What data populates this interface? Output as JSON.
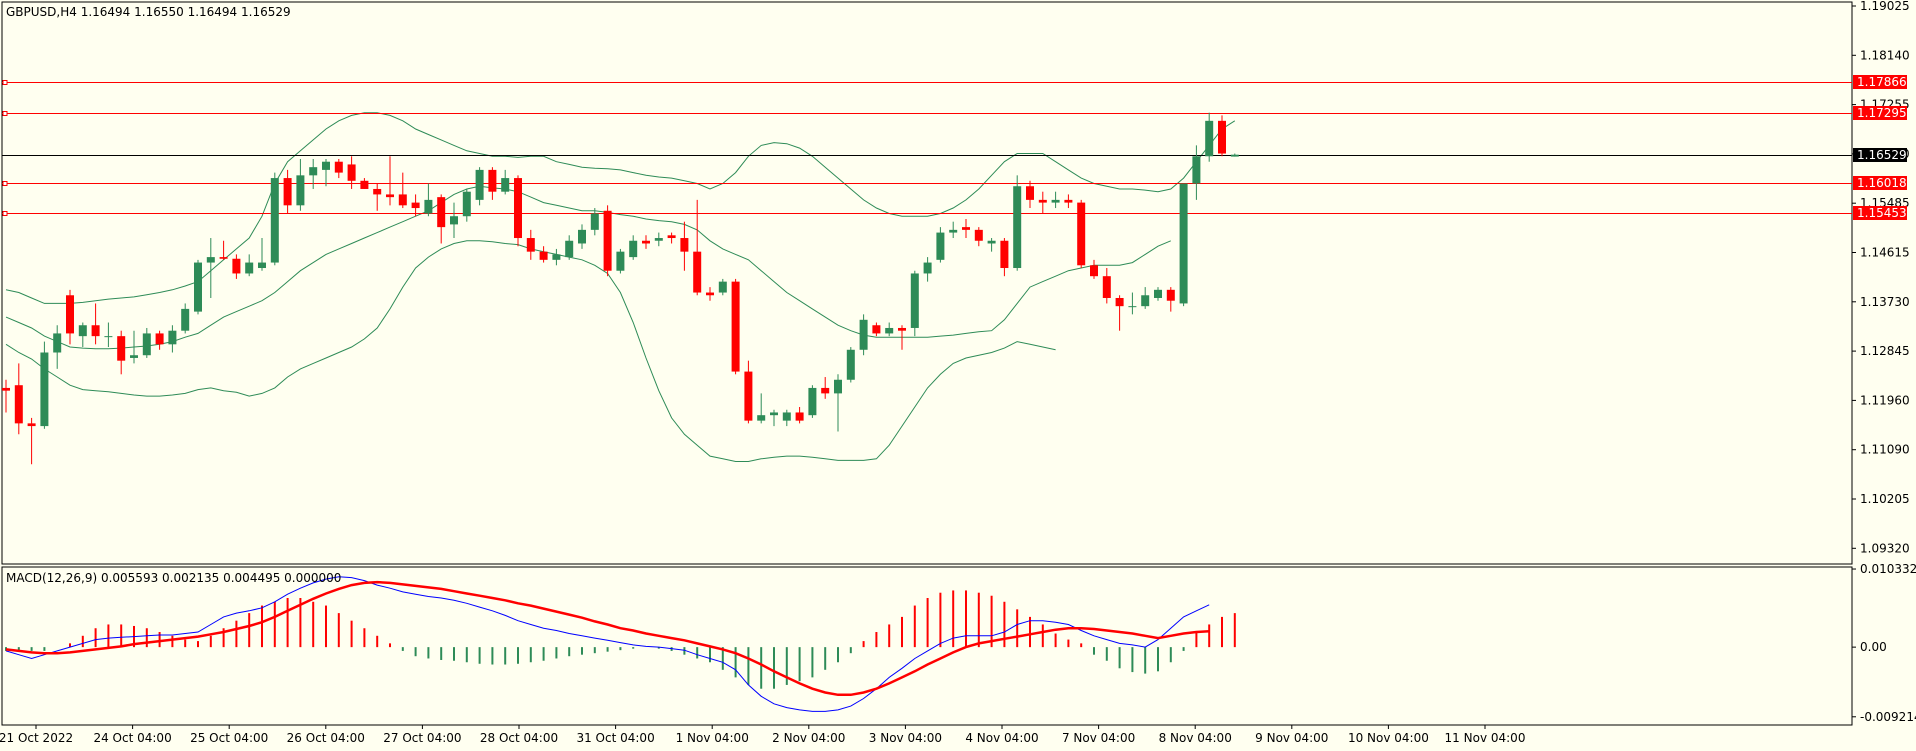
{
  "header": {
    "symbol_line": "GBPUSD,H4  1.16494 1.16550 1.16494 1.16529",
    "macd_line": "MACD(12,26,9) 0.005593 0.002135 0.004495 0.000000"
  },
  "colors": {
    "background": "#fffff0",
    "bull": "#2e8b57",
    "bear": "#ff0000",
    "bands": "#2e8b57",
    "hline": "#ff0000",
    "price_line": "#000000",
    "macd_main": "#0000ff",
    "macd_signal": "#ff0000"
  },
  "price_axis": {
    "ticks": [
      "1.19025",
      "1.18140",
      "1.17255",
      "1.16370",
      "1.15485",
      "1.14615",
      "1.13730",
      "1.12845",
      "1.11960",
      "1.11090",
      "1.10205",
      "1.09320"
    ]
  },
  "h_lines": [
    {
      "price": 1.17866,
      "label": "1.17866"
    },
    {
      "price": 1.17295,
      "label": "1.17295"
    },
    {
      "price": 1.16018,
      "label": "1.16018"
    },
    {
      "price": 1.15453,
      "label": "1.15453"
    }
  ],
  "current_price": {
    "price": 1.16529,
    "label": "1.16529"
  },
  "macd_axis": {
    "ticks": [
      "0.010332",
      "0.00",
      "-0.009214"
    ]
  },
  "time_axis": {
    "labels": [
      "21 Oct 2022",
      "24 Oct 04:00",
      "25 Oct 04:00",
      "26 Oct 04:00",
      "27 Oct 04:00",
      "28 Oct 04:00",
      "31 Oct 04:00",
      "1 Nov 04:00",
      "2 Nov 04:00",
      "3 Nov 04:00",
      "4 Nov 04:00",
      "7 Nov 04:00",
      "8 Nov 04:00",
      "9 Nov 04:00",
      "10 Nov 04:00",
      "11 Nov 04:00"
    ]
  },
  "chart_data": {
    "type": "candlestick",
    "symbol": "GBPUSD",
    "timeframe": "H4",
    "price_ylim": [
      1.0902,
      1.1933
    ],
    "macd_ylim": [
      -0.0103,
      0.0106
    ],
    "candles": [
      {
        "o": 1.1225,
        "h": 1.124,
        "l": 1.118,
        "c": 1.122
      },
      {
        "o": 1.123,
        "h": 1.127,
        "l": 1.114,
        "c": 1.116
      },
      {
        "o": 1.116,
        "h": 1.117,
        "l": 1.1085,
        "c": 1.1155
      },
      {
        "o": 1.1155,
        "h": 1.131,
        "l": 1.115,
        "c": 1.129
      },
      {
        "o": 1.129,
        "h": 1.134,
        "l": 1.126,
        "c": 1.1325
      },
      {
        "o": 1.1395,
        "h": 1.1405,
        "l": 1.1305,
        "c": 1.1325
      },
      {
        "o": 1.132,
        "h": 1.1345,
        "l": 1.13,
        "c": 1.134
      },
      {
        "o": 1.134,
        "h": 1.138,
        "l": 1.1305,
        "c": 1.132
      },
      {
        "o": 1.132,
        "h": 1.1345,
        "l": 1.13,
        "c": 1.132
      },
      {
        "o": 1.132,
        "h": 1.133,
        "l": 1.125,
        "c": 1.1275
      },
      {
        "o": 1.128,
        "h": 1.133,
        "l": 1.127,
        "c": 1.1285
      },
      {
        "o": 1.1285,
        "h": 1.1335,
        "l": 1.128,
        "c": 1.1325
      },
      {
        "o": 1.1325,
        "h": 1.133,
        "l": 1.1295,
        "c": 1.1305
      },
      {
        "o": 1.1305,
        "h": 1.134,
        "l": 1.129,
        "c": 1.133
      },
      {
        "o": 1.133,
        "h": 1.138,
        "l": 1.1325,
        "c": 1.137
      },
      {
        "o": 1.1365,
        "h": 1.146,
        "l": 1.136,
        "c": 1.1455
      },
      {
        "o": 1.1455,
        "h": 1.15,
        "l": 1.139,
        "c": 1.1465
      },
      {
        "o": 1.1465,
        "h": 1.1495,
        "l": 1.146,
        "c": 1.1462
      },
      {
        "o": 1.1462,
        "h": 1.147,
        "l": 1.1425,
        "c": 1.1435
      },
      {
        "o": 1.1435,
        "h": 1.147,
        "l": 1.143,
        "c": 1.1455
      },
      {
        "o": 1.1445,
        "h": 1.15,
        "l": 1.144,
        "c": 1.1455
      },
      {
        "o": 1.1455,
        "h": 1.162,
        "l": 1.145,
        "c": 1.161
      },
      {
        "o": 1.161,
        "h": 1.1625,
        "l": 1.1545,
        "c": 1.156
      },
      {
        "o": 1.156,
        "h": 1.1645,
        "l": 1.155,
        "c": 1.1615
      },
      {
        "o": 1.1615,
        "h": 1.1645,
        "l": 1.159,
        "c": 1.163
      },
      {
        "o": 1.1625,
        "h": 1.1645,
        "l": 1.1595,
        "c": 1.164
      },
      {
        "o": 1.164,
        "h": 1.1645,
        "l": 1.161,
        "c": 1.162
      },
      {
        "o": 1.1635,
        "h": 1.165,
        "l": 1.159,
        "c": 1.1605
      },
      {
        "o": 1.1605,
        "h": 1.161,
        "l": 1.159,
        "c": 1.159
      },
      {
        "o": 1.159,
        "h": 1.16,
        "l": 1.155,
        "c": 1.158
      },
      {
        "o": 1.158,
        "h": 1.165,
        "l": 1.156,
        "c": 1.1575
      },
      {
        "o": 1.158,
        "h": 1.162,
        "l": 1.1555,
        "c": 1.156
      },
      {
        "o": 1.1565,
        "h": 1.158,
        "l": 1.154,
        "c": 1.1555
      },
      {
        "o": 1.1545,
        "h": 1.16,
        "l": 1.154,
        "c": 1.157
      },
      {
        "o": 1.1575,
        "h": 1.158,
        "l": 1.149,
        "c": 1.152
      },
      {
        "o": 1.1525,
        "h": 1.1565,
        "l": 1.15,
        "c": 1.154
      },
      {
        "o": 1.154,
        "h": 1.159,
        "l": 1.153,
        "c": 1.1585
      },
      {
        "o": 1.157,
        "h": 1.163,
        "l": 1.156,
        "c": 1.1625
      },
      {
        "o": 1.1625,
        "h": 1.163,
        "l": 1.157,
        "c": 1.1585
      },
      {
        "o": 1.1585,
        "h": 1.1625,
        "l": 1.158,
        "c": 1.161
      },
      {
        "o": 1.161,
        "h": 1.1615,
        "l": 1.1485,
        "c": 1.15
      },
      {
        "o": 1.15,
        "h": 1.1515,
        "l": 1.146,
        "c": 1.1475
      },
      {
        "o": 1.1475,
        "h": 1.1485,
        "l": 1.1455,
        "c": 1.146
      },
      {
        "o": 1.146,
        "h": 1.148,
        "l": 1.145,
        "c": 1.147
      },
      {
        "o": 1.1465,
        "h": 1.1505,
        "l": 1.146,
        "c": 1.1495
      },
      {
        "o": 1.149,
        "h": 1.1525,
        "l": 1.148,
        "c": 1.1515
      },
      {
        "o": 1.1515,
        "h": 1.1555,
        "l": 1.1505,
        "c": 1.1545
      },
      {
        "o": 1.155,
        "h": 1.156,
        "l": 1.143,
        "c": 1.144
      },
      {
        "o": 1.144,
        "h": 1.148,
        "l": 1.1435,
        "c": 1.1475
      },
      {
        "o": 1.1465,
        "h": 1.1505,
        "l": 1.146,
        "c": 1.1495
      },
      {
        "o": 1.1495,
        "h": 1.1505,
        "l": 1.148,
        "c": 1.149
      },
      {
        "o": 1.1495,
        "h": 1.151,
        "l": 1.1485,
        "c": 1.15
      },
      {
        "o": 1.1505,
        "h": 1.151,
        "l": 1.149,
        "c": 1.15
      },
      {
        "o": 1.15,
        "h": 1.153,
        "l": 1.144,
        "c": 1.1475
      },
      {
        "o": 1.1475,
        "h": 1.157,
        "l": 1.1395,
        "c": 1.14
      },
      {
        "o": 1.14,
        "h": 1.141,
        "l": 1.1385,
        "c": 1.1395
      },
      {
        "o": 1.14,
        "h": 1.1425,
        "l": 1.1395,
        "c": 1.142
      },
      {
        "o": 1.142,
        "h": 1.1425,
        "l": 1.125,
        "c": 1.1255
      },
      {
        "o": 1.1255,
        "h": 1.1275,
        "l": 1.116,
        "c": 1.1165
      },
      {
        "o": 1.1165,
        "h": 1.1215,
        "l": 1.116,
        "c": 1.1175
      },
      {
        "o": 1.1175,
        "h": 1.1185,
        "l": 1.1155,
        "c": 1.118
      },
      {
        "o": 1.1165,
        "h": 1.1185,
        "l": 1.1155,
        "c": 1.118
      },
      {
        "o": 1.118,
        "h": 1.119,
        "l": 1.116,
        "c": 1.1165
      },
      {
        "o": 1.1175,
        "h": 1.123,
        "l": 1.117,
        "c": 1.1225
      },
      {
        "o": 1.1225,
        "h": 1.1245,
        "l": 1.1205,
        "c": 1.1215
      },
      {
        "o": 1.1215,
        "h": 1.125,
        "l": 1.1145,
        "c": 1.124
      },
      {
        "o": 1.124,
        "h": 1.13,
        "l": 1.1235,
        "c": 1.1295
      },
      {
        "o": 1.1295,
        "h": 1.136,
        "l": 1.1285,
        "c": 1.135
      },
      {
        "o": 1.134,
        "h": 1.1345,
        "l": 1.132,
        "c": 1.1325
      },
      {
        "o": 1.1325,
        "h": 1.1345,
        "l": 1.132,
        "c": 1.1335
      },
      {
        "o": 1.1335,
        "h": 1.134,
        "l": 1.1295,
        "c": 1.133
      },
      {
        "o": 1.1335,
        "h": 1.144,
        "l": 1.132,
        "c": 1.1435
      },
      {
        "o": 1.1435,
        "h": 1.1465,
        "l": 1.142,
        "c": 1.1455
      },
      {
        "o": 1.146,
        "h": 1.152,
        "l": 1.1455,
        "c": 1.151
      },
      {
        "o": 1.151,
        "h": 1.153,
        "l": 1.15,
        "c": 1.1515
      },
      {
        "o": 1.152,
        "h": 1.1535,
        "l": 1.15,
        "c": 1.1515
      },
      {
        "o": 1.1515,
        "h": 1.152,
        "l": 1.1485,
        "c": 1.1495
      },
      {
        "o": 1.149,
        "h": 1.15,
        "l": 1.1475,
        "c": 1.1495
      },
      {
        "o": 1.1495,
        "h": 1.15,
        "l": 1.143,
        "c": 1.1445
      },
      {
        "o": 1.1445,
        "h": 1.1615,
        "l": 1.144,
        "c": 1.1595
      },
      {
        "o": 1.1595,
        "h": 1.1605,
        "l": 1.1555,
        "c": 1.157
      },
      {
        "o": 1.157,
        "h": 1.1585,
        "l": 1.1545,
        "c": 1.1565
      },
      {
        "o": 1.1565,
        "h": 1.1585,
        "l": 1.1555,
        "c": 1.157
      },
      {
        "o": 1.157,
        "h": 1.158,
        "l": 1.1555,
        "c": 1.1565
      },
      {
        "o": 1.1565,
        "h": 1.157,
        "l": 1.1445,
        "c": 1.145
      },
      {
        "o": 1.145,
        "h": 1.146,
        "l": 1.1425,
        "c": 1.143
      },
      {
        "o": 1.143,
        "h": 1.1445,
        "l": 1.138,
        "c": 1.139
      },
      {
        "o": 1.139,
        "h": 1.1395,
        "l": 1.133,
        "c": 1.1375
      },
      {
        "o": 1.1375,
        "h": 1.14,
        "l": 1.136,
        "c": 1.1375
      },
      {
        "o": 1.1375,
        "h": 1.141,
        "l": 1.137,
        "c": 1.1395
      },
      {
        "o": 1.139,
        "h": 1.141,
        "l": 1.1385,
        "c": 1.1405
      },
      {
        "o": 1.1405,
        "h": 1.141,
        "l": 1.1365,
        "c": 1.1385
      },
      {
        "o": 1.138,
        "h": 1.16,
        "l": 1.1375,
        "c": 1.16
      },
      {
        "o": 1.16,
        "h": 1.167,
        "l": 1.157,
        "c": 1.165
      },
      {
        "o": 1.165,
        "h": 1.173,
        "l": 1.164,
        "c": 1.1715
      },
      {
        "o": 1.1715,
        "h": 1.1725,
        "l": 1.165,
        "c": 1.1655
      },
      {
        "o": 1.16494,
        "h": 1.1655,
        "l": 1.16494,
        "c": 1.16529
      }
    ],
    "upper_band": [
      1.1405,
      1.14,
      1.139,
      1.138,
      1.138,
      1.138,
      1.1382,
      1.1385,
      1.1388,
      1.139,
      1.1392,
      1.1396,
      1.14,
      1.1405,
      1.1412,
      1.142,
      1.144,
      1.146,
      1.148,
      1.15,
      1.154,
      1.16,
      1.164,
      1.166,
      1.168,
      1.17,
      1.1715,
      1.1725,
      1.173,
      1.173,
      1.1725,
      1.1715,
      1.17,
      1.169,
      1.168,
      1.167,
      1.166,
      1.1655,
      1.165,
      1.165,
      1.1648,
      1.165,
      1.165,
      1.164,
      1.1635,
      1.163,
      1.1628,
      1.1627,
      1.1625,
      1.162,
      1.1615,
      1.1612,
      1.161,
      1.1605,
      1.16,
      1.159,
      1.16,
      1.162,
      1.165,
      1.167,
      1.1675,
      1.1673,
      1.1665,
      1.165,
      1.163,
      1.161,
      1.159,
      1.157,
      1.1555,
      1.1545,
      1.154,
      1.154,
      1.154,
      1.1545,
      1.1555,
      1.157,
      1.159,
      1.1615,
      1.164,
      1.1655,
      1.1655,
      1.1655,
      1.164,
      1.1625,
      1.161,
      1.16,
      1.1595,
      1.159,
      1.159,
      1.1588,
      1.1585,
      1.159,
      1.161,
      1.164,
      1.167,
      1.17,
      1.1715
    ],
    "middle_band": [
      1.1355,
      1.1345,
      1.1335,
      1.132,
      1.131,
      1.13,
      1.1298,
      1.1297,
      1.1297,
      1.1298,
      1.13,
      1.1302,
      1.1305,
      1.131,
      1.1318,
      1.1325,
      1.134,
      1.1355,
      1.1365,
      1.1375,
      1.1385,
      1.14,
      1.142,
      1.144,
      1.1455,
      1.147,
      1.148,
      1.149,
      1.15,
      1.151,
      1.152,
      1.153,
      1.154,
      1.155,
      1.1565,
      1.158,
      1.159,
      1.1595,
      1.1592,
      1.159,
      1.1585,
      1.1575,
      1.1565,
      1.156,
      1.1555,
      1.155,
      1.155,
      1.1547,
      1.1543,
      1.154,
      1.1535,
      1.1532,
      1.153,
      1.1525,
      1.1515,
      1.1495,
      1.148,
      1.147,
      1.146,
      1.144,
      1.142,
      1.14,
      1.1385,
      1.137,
      1.1355,
      1.134,
      1.133,
      1.1322,
      1.1318,
      1.1318,
      1.1318,
      1.1318,
      1.1318,
      1.132,
      1.1322,
      1.1325,
      1.1328,
      1.133,
      1.135,
      1.138,
      1.141,
      1.142,
      1.143,
      1.144,
      1.1445,
      1.145,
      1.145,
      1.145,
      1.1455,
      1.147,
      1.1485,
      1.1495
    ],
    "lower_band": [
      1.1305,
      1.129,
      1.1278,
      1.126,
      1.1245,
      1.123,
      1.1222,
      1.122,
      1.1218,
      1.1215,
      1.1212,
      1.121,
      1.121,
      1.1212,
      1.1215,
      1.1222,
      1.1225,
      1.122,
      1.1217,
      1.121,
      1.1215,
      1.1225,
      1.1245,
      1.126,
      1.127,
      1.128,
      1.129,
      1.13,
      1.1315,
      1.1335,
      1.137,
      1.141,
      1.1445,
      1.1465,
      1.148,
      1.149,
      1.1495,
      1.1495,
      1.1493,
      1.149,
      1.1488,
      1.148,
      1.1475,
      1.147,
      1.1465,
      1.146,
      1.145,
      1.1435,
      1.14,
      1.1345,
      1.128,
      1.122,
      1.117,
      1.114,
      1.112,
      1.11,
      1.1095,
      1.109,
      1.109,
      1.1095,
      1.1098,
      1.11,
      1.11,
      1.1098,
      1.1095,
      1.1092,
      1.1092,
      1.1092,
      1.1095,
      1.112,
      1.1155,
      1.119,
      1.1225,
      1.125,
      1.127,
      1.128,
      1.1285,
      1.129,
      1.1298,
      1.131,
      1.1305,
      1.13,
      1.1295
    ],
    "macd_main": [
      -0.0005,
      -0.001,
      -0.0015,
      -0.001,
      -0.0005,
      0.0,
      0.0005,
      0.001,
      0.0012,
      0.0013,
      0.0014,
      0.0015,
      0.0016,
      0.0016,
      0.0018,
      0.002,
      0.003,
      0.004,
      0.0045,
      0.0048,
      0.0052,
      0.006,
      0.007,
      0.0078,
      0.0085,
      0.009,
      0.0093,
      0.0092,
      0.0088,
      0.0082,
      0.0078,
      0.0073,
      0.007,
      0.0067,
      0.0065,
      0.0062,
      0.0058,
      0.0053,
      0.0048,
      0.0042,
      0.0035,
      0.003,
      0.0025,
      0.0022,
      0.0018,
      0.0015,
      0.0012,
      0.0009,
      0.0006,
      0.0003,
      0.0001,
      0.0,
      -0.0002,
      -0.0004,
      -0.001,
      -0.0015,
      -0.002,
      -0.003,
      -0.005,
      -0.0065,
      -0.0075,
      -0.008,
      -0.0083,
      -0.0085,
      -0.0085,
      -0.0083,
      -0.0078,
      -0.0068,
      -0.0055,
      -0.004,
      -0.0028,
      -0.0015,
      -0.0005,
      0.0005,
      0.0012,
      0.0015,
      0.0015,
      0.0015,
      0.002,
      0.003,
      0.0035,
      0.0035,
      0.0033,
      0.003,
      0.0022,
      0.0015,
      0.001,
      0.0005,
      0.0003,
      0.0,
      0.001,
      0.0025,
      0.004,
      0.0048,
      0.0056
    ],
    "macd_signal": [
      -0.0003,
      -0.0005,
      -0.0007,
      -0.0008,
      -0.0008,
      -0.0007,
      -0.0005,
      -0.0003,
      -0.0001,
      0.0001,
      0.0004,
      0.0006,
      0.0008,
      0.001,
      0.0012,
      0.0014,
      0.0017,
      0.002,
      0.0024,
      0.0028,
      0.0033,
      0.004,
      0.0048,
      0.0056,
      0.0064,
      0.0071,
      0.0077,
      0.0082,
      0.0085,
      0.0086,
      0.0085,
      0.0083,
      0.0081,
      0.0079,
      0.0077,
      0.0074,
      0.0071,
      0.0068,
      0.0065,
      0.0062,
      0.0058,
      0.0055,
      0.0051,
      0.0047,
      0.0043,
      0.0039,
      0.0034,
      0.003,
      0.0025,
      0.0022,
      0.0018,
      0.0015,
      0.0012,
      0.0009,
      0.0005,
      0.0001,
      -0.0003,
      -0.0008,
      -0.0015,
      -0.0023,
      -0.0032,
      -0.004,
      -0.0048,
      -0.0055,
      -0.006,
      -0.0063,
      -0.0063,
      -0.006,
      -0.0055,
      -0.0048,
      -0.004,
      -0.0032,
      -0.0023,
      -0.0015,
      -0.0007,
      0.0,
      0.0005,
      0.0008,
      0.0011,
      0.0014,
      0.0017,
      0.002,
      0.0023,
      0.0025,
      0.0025,
      0.0024,
      0.0022,
      0.002,
      0.0018,
      0.0015,
      0.0012,
      0.0015,
      0.0018,
      0.002,
      0.0021
    ],
    "macd_histogram": [
      -0.0005,
      -0.0005,
      -0.0005,
      -0.0005,
      0.0,
      0.0005,
      0.0015,
      0.0025,
      0.003,
      0.003,
      0.0028,
      0.0025,
      0.002,
      0.0015,
      0.001,
      0.0008,
      0.0015,
      0.0025,
      0.0035,
      0.0045,
      0.0055,
      0.006,
      0.0065,
      0.0065,
      0.006,
      0.0055,
      0.0045,
      0.0035,
      0.0025,
      0.0015,
      0.0005,
      -0.0005,
      -0.0012,
      -0.0015,
      -0.0017,
      -0.0018,
      -0.002,
      -0.0022,
      -0.0023,
      -0.0023,
      -0.0022,
      -0.002,
      -0.0018,
      -0.0015,
      -0.0012,
      -0.001,
      -0.0008,
      -0.0006,
      -0.0004,
      -0.0002,
      0.0,
      -0.0002,
      -0.0005,
      -0.001,
      -0.0015,
      -0.002,
      -0.003,
      -0.004,
      -0.005,
      -0.0055,
      -0.0055,
      -0.005,
      -0.0045,
      -0.004,
      -0.003,
      -0.002,
      -0.0008,
      0.0008,
      0.002,
      0.003,
      0.004,
      0.0055,
      0.0065,
      0.0072,
      0.0075,
      0.0075,
      0.0072,
      0.0068,
      0.006,
      0.005,
      0.004,
      0.003,
      0.0018,
      0.001,
      0.0005,
      -0.001,
      -0.0018,
      -0.0028,
      -0.0033,
      -0.0035,
      -0.0032,
      -0.002,
      -0.0005,
      0.002,
      0.003,
      0.004,
      0.0045
    ]
  }
}
